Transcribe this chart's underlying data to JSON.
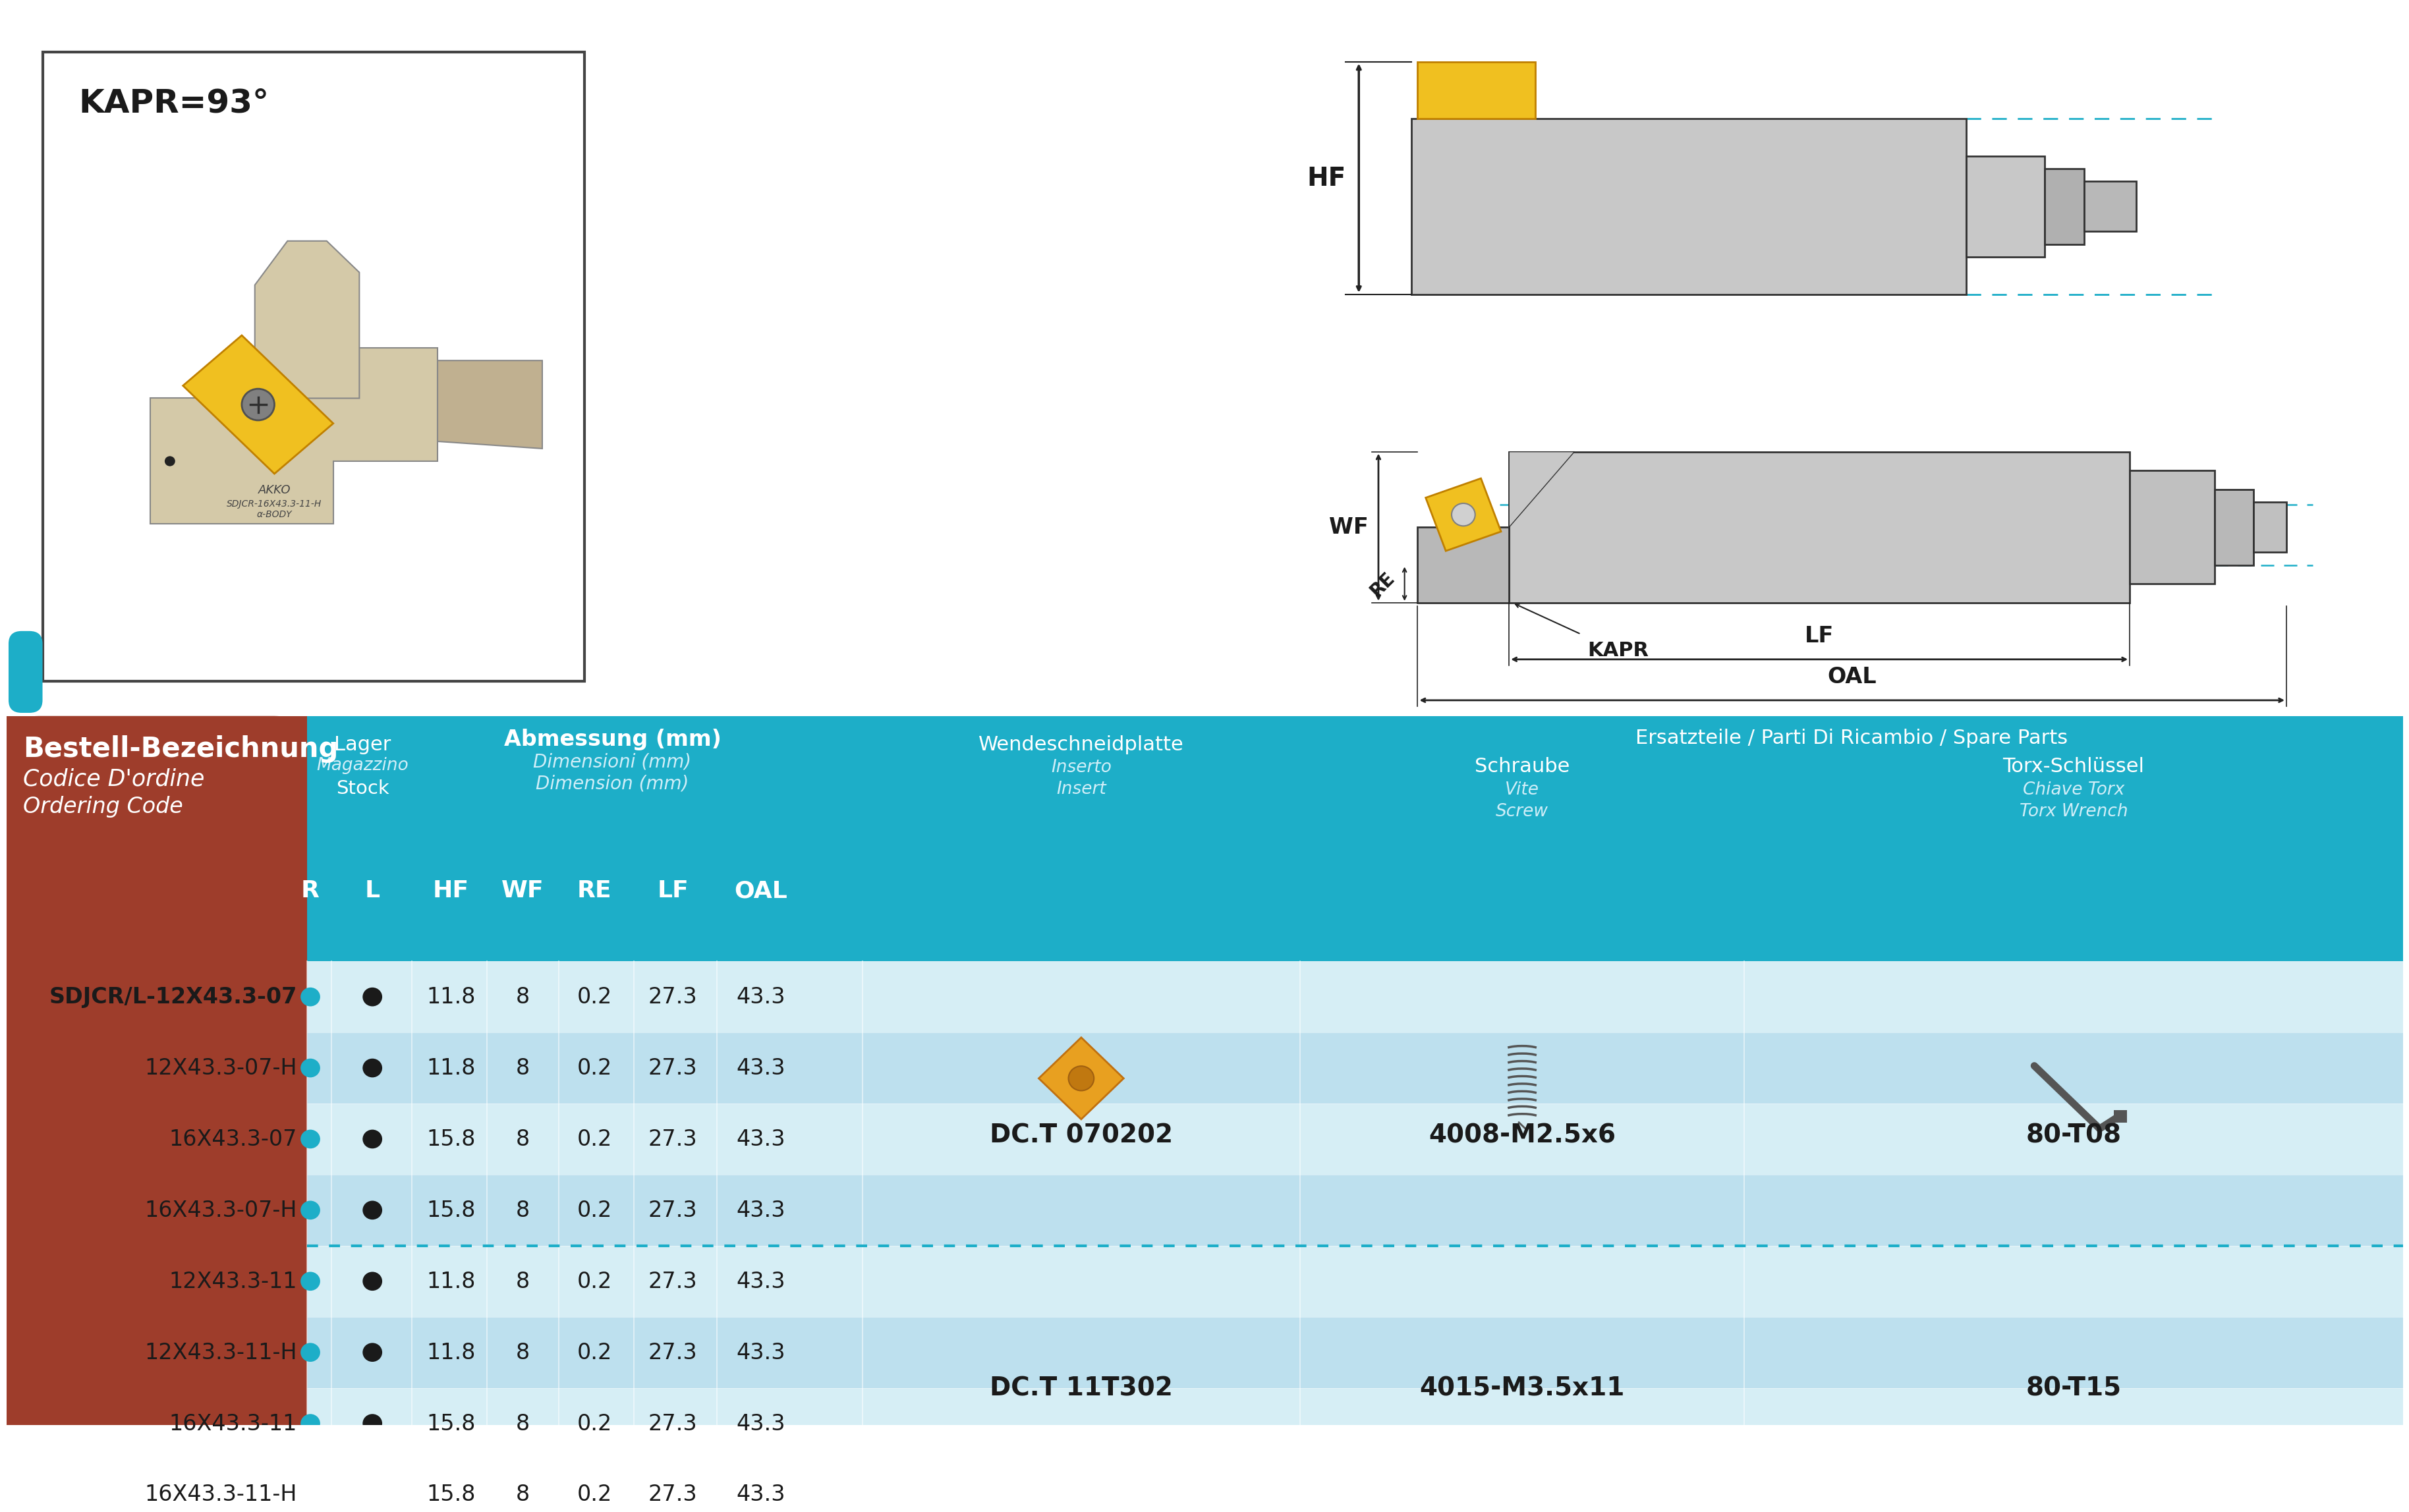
{
  "bg_color": "#ffffff",
  "kapr_label": "KAPR=93°",
  "table_header_bg": "#1daec8",
  "table_left_bg": "#9e3d2b",
  "table_row_bg_light": "#d6eef5",
  "table_row_bg_dark": "#bde0ee",
  "dotted_line_color": "#1daec8",
  "bestell_label1": "Bestell-Bezeichnung",
  "bestell_label2": "Codice D'ordine",
  "bestell_label3": "Ordering Code",
  "lager_label1": "Lager",
  "lager_label2": "Magazzino",
  "lager_label3": "Stock",
  "abmessung_label1": "Abmessung (mm)",
  "abmessung_label2": "Dimensioni (mm)",
  "abmessung_label3": "Dimension (mm)",
  "spare_parts_header": "Ersatzteile / Parti Di Ricambio / Spare Parts",
  "wsp_label1": "Wendeschneidplatte",
  "wsp_label2": "Inserto",
  "wsp_label3": "Insert",
  "screw_label1": "Schraube",
  "screw_label2": "Vite",
  "screw_label3": "Screw",
  "torx_label1": "Torx-Schlüssel",
  "torx_label2": "Chiave Torx",
  "torx_label3": "Torx Wrench",
  "col_headers": [
    "R",
    "L",
    "HF",
    "WF",
    "RE",
    "LF",
    "OAL"
  ],
  "rows_group1": [
    {
      "name": "SDJCR/L-12X43.3-07",
      "bold": true,
      "HF": "11.8",
      "WF": "8",
      "RE": "0.2",
      "LF": "27.3",
      "OAL": "43.3"
    },
    {
      "name": "12X43.3-07-H",
      "bold": false,
      "HF": "11.8",
      "WF": "8",
      "RE": "0.2",
      "LF": "27.3",
      "OAL": "43.3"
    },
    {
      "name": "16X43.3-07",
      "bold": false,
      "HF": "15.8",
      "WF": "8",
      "RE": "0.2",
      "LF": "27.3",
      "OAL": "43.3"
    },
    {
      "name": "16X43.3-07-H",
      "bold": false,
      "HF": "15.8",
      "WF": "8",
      "RE": "0.2",
      "LF": "27.3",
      "OAL": "43.3"
    }
  ],
  "rows_group2": [
    {
      "name": "12X43.3-11",
      "bold": false,
      "HF": "11.8",
      "WF": "8",
      "RE": "0.2",
      "LF": "27.3",
      "OAL": "43.3"
    },
    {
      "name": "12X43.3-11-H",
      "bold": false,
      "HF": "11.8",
      "WF": "8",
      "RE": "0.2",
      "LF": "27.3",
      "OAL": "43.3"
    },
    {
      "name": "16X43.3-11",
      "bold": false,
      "HF": "15.8",
      "WF": "8",
      "RE": "0.2",
      "LF": "27.3",
      "OAL": "43.3"
    },
    {
      "name": "16X43.3-11-H",
      "bold": false,
      "HF": "15.8",
      "WF": "8",
      "RE": "0.2",
      "LF": "27.3",
      "OAL": "43.3"
    }
  ],
  "insert_g1": "DC.T 070202",
  "screw_g1": "4008-M2.5x6",
  "torx_g1": "80-T08",
  "insert_g2": "DC.T 11T302",
  "screw_g2": "4015-M3.5x11",
  "torx_g2": "80-T15",
  "dot_cyan_color": "#1daec8",
  "dot_dark_color": "#1a1a1a"
}
